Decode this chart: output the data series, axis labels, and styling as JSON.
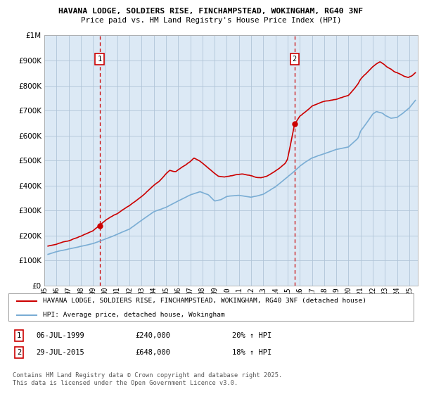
{
  "title1": "HAVANA LODGE, SOLDIERS RISE, FINCHAMPSTEAD, WOKINGHAM, RG40 3NF",
  "title2": "Price paid vs. HM Land Registry's House Price Index (HPI)",
  "legend_label1": "HAVANA LODGE, SOLDIERS RISE, FINCHAMPSTEAD, WOKINGHAM, RG40 3NF (detached house)",
  "legend_label2": "HPI: Average price, detached house, Wokingham",
  "line1_color": "#cc0000",
  "line2_color": "#7aadd4",
  "chart_bg": "#dce9f5",
  "annotation1": {
    "label": "1",
    "date_x": 1999.54,
    "y": 240000
  },
  "annotation2": {
    "label": "2",
    "date_x": 2015.57,
    "y": 648000
  },
  "ylim": [
    0,
    1000000
  ],
  "yticks": [
    0,
    100000,
    200000,
    300000,
    400000,
    500000,
    600000,
    700000,
    800000,
    900000,
    1000000
  ],
  "background_color": "#ffffff",
  "grid_color": "#b0c4d8",
  "vline_color": "#cc0000",
  "vline1_x": 1999.54,
  "vline2_x": 2015.57,
  "xmin": 1995.3,
  "xmax": 2025.7,
  "footnote": "Contains HM Land Registry data © Crown copyright and database right 2025.\nThis data is licensed under the Open Government Licence v3.0."
}
